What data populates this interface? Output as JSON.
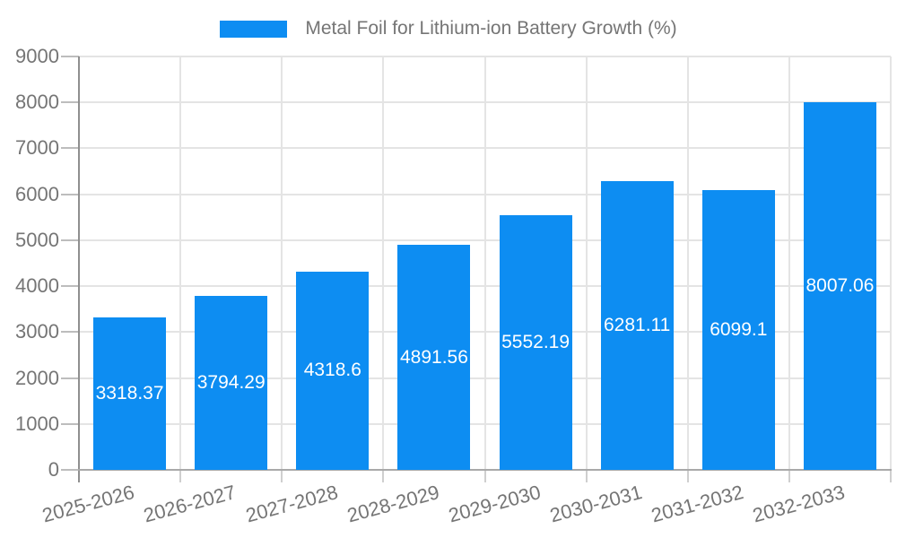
{
  "legend": {
    "label": "Metal Foil for Lithium-ion Battery Growth (%)"
  },
  "colors": {
    "bar": "#0d8df2",
    "axis_text": "#757575",
    "value_label_text": "#ffffff",
    "grid_line": "#e4e4e4",
    "axis_line": "#8f8f8f",
    "background": "#ffffff"
  },
  "chart_data": {
    "type": "bar",
    "title": "Metal Foil for Lithium-ion Battery Growth (%)",
    "xlabel": "",
    "ylabel": "",
    "categories": [
      "2025-2026",
      "2026-2027",
      "2027-2028",
      "2028-2029",
      "2029-2030",
      "2030-2031",
      "2031-2032",
      "2032-2033"
    ],
    "series": [
      {
        "name": "Metal Foil for Lithium-ion Battery Growth (%)",
        "values": [
          3318.37,
          3794.29,
          4318.6,
          4891.56,
          5552.19,
          6281.11,
          6099.1,
          8007.06
        ]
      }
    ],
    "value_labels": [
      "3318.37",
      "3794.29",
      "4318.6",
      "4891.56",
      "5552.19",
      "6281.11",
      "6099.1",
      "8007.06"
    ],
    "ylim": [
      0,
      9000
    ],
    "yticks": [
      0,
      1000,
      2000,
      3000,
      4000,
      5000,
      6000,
      7000,
      8000,
      9000
    ],
    "grid": true,
    "legend_position": "top-center",
    "bar_color": "#0d8df2",
    "value_label_position": "center-of-bar",
    "xtick_label_rotation_deg": -15
  }
}
